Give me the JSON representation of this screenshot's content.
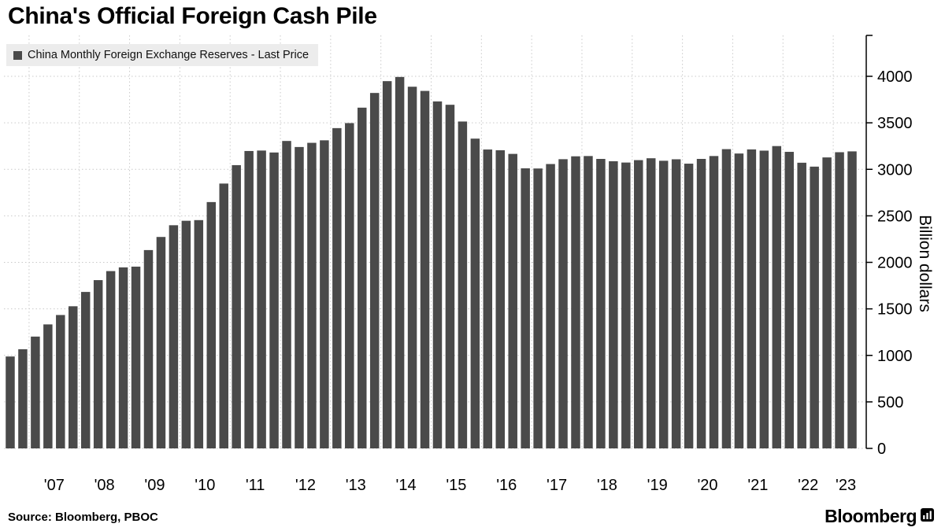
{
  "title": "China's Official Foreign Cash Pile",
  "legend": {
    "label": "China Monthly Foreign Exchange Reserves - Last Price",
    "marker_color": "#4a4a4a"
  },
  "source": "Source: Bloomberg, PBOC",
  "branding": {
    "wordmark": "Bloomberg"
  },
  "chart_data": {
    "type": "bar",
    "title": "China's Official Foreign Cash Pile",
    "series_name": "China Monthly Foreign Exchange Reserves - Last Price",
    "ylabel": "Billion dollars",
    "ylim": [
      0,
      4100
    ],
    "yticks": [
      0,
      500,
      1000,
      1500,
      2000,
      2500,
      3000,
      3500,
      4000
    ],
    "grid": "dotted",
    "bar_color": "#4a4a4a",
    "x": [
      "2006 Q3",
      "2006 Q4",
      "2007 Q1",
      "2007 Q2",
      "2007 Q3",
      "2007 Q4",
      "2008 Q1",
      "2008 Q2",
      "2008 Q3",
      "2008 Q4",
      "2009 Q1",
      "2009 Q2",
      "2009 Q3",
      "2009 Q4",
      "2010 Q1",
      "2010 Q2",
      "2010 Q3",
      "2010 Q4",
      "2011 Q1",
      "2011 Q2",
      "2011 Q3",
      "2011 Q4",
      "2012 Q1",
      "2012 Q2",
      "2012 Q3",
      "2012 Q4",
      "2013 Q1",
      "2013 Q2",
      "2013 Q3",
      "2013 Q4",
      "2014 Q1",
      "2014 Q2",
      "2014 Q3",
      "2014 Q4",
      "2015 Q1",
      "2015 Q2",
      "2015 Q3",
      "2015 Q4",
      "2016 Q1",
      "2016 Q2",
      "2016 Q3",
      "2016 Q4",
      "2017 Q1",
      "2017 Q2",
      "2017 Q3",
      "2017 Q4",
      "2018 Q1",
      "2018 Q2",
      "2018 Q3",
      "2018 Q4",
      "2019 Q1",
      "2019 Q2",
      "2019 Q3",
      "2019 Q4",
      "2020 Q1",
      "2020 Q2",
      "2020 Q3",
      "2020 Q4",
      "2021 Q1",
      "2021 Q2",
      "2021 Q3",
      "2021 Q4",
      "2022 Q1",
      "2022 Q2",
      "2022 Q3",
      "2022 Q4",
      "2023 Q1",
      "2023 Q2"
    ],
    "values": [
      988,
      1066,
      1202,
      1333,
      1434,
      1528,
      1682,
      1809,
      1906,
      1946,
      1954,
      2132,
      2273,
      2399,
      2447,
      2454,
      2648,
      2847,
      3045,
      3197,
      3202,
      3181,
      3305,
      3240,
      3285,
      3312,
      3443,
      3497,
      3663,
      3821,
      3948,
      3993,
      3888,
      3843,
      3730,
      3694,
      3514,
      3330,
      3213,
      3205,
      3166,
      3011,
      3009,
      3057,
      3109,
      3140,
      3143,
      3112,
      3087,
      3073,
      3099,
      3119,
      3092,
      3108,
      3061,
      3112,
      3143,
      3217,
      3170,
      3214,
      3201,
      3250,
      3188,
      3071,
      3029,
      3128,
      3184,
      3193
    ],
    "xtick_labels": [
      "'07",
      "'08",
      "'09",
      "'10",
      "'11",
      "'12",
      "'13",
      "'14",
      "'15",
      "'16",
      "'17",
      "'18",
      "'19",
      "'20",
      "'21",
      "'22",
      "'23"
    ]
  }
}
